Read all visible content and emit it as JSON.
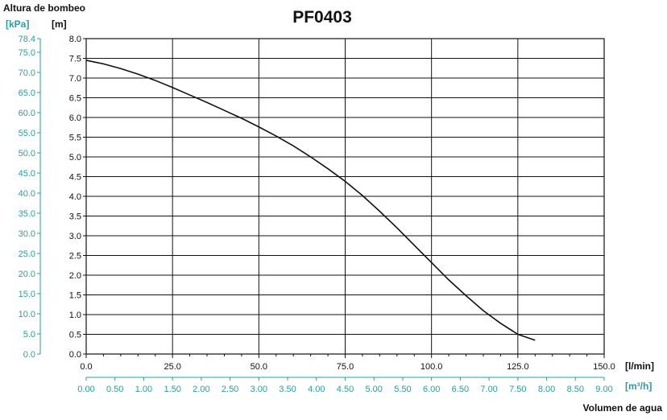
{
  "colors": {
    "axis_text": "#111111",
    "secondary_axis": "#2a9d9d",
    "grid": "#111111",
    "curve": "#111111"
  },
  "chart_data": {
    "type": "line",
    "title": "PF0403",
    "y_axis_title": "Altura de bombeo",
    "y_unit_m": "[m]",
    "y_unit_kpa": "[kPa]",
    "x_unit_lmin": "[l/min]",
    "x_unit_m3h": "[m³/h]",
    "x_axis_title": "Volumen de agua",
    "xlim": [
      0,
      150
    ],
    "ylim": [
      0,
      8
    ],
    "x_ticks": [
      "0.0",
      "25.0",
      "50.0",
      "75.0",
      "100.0",
      "125.0",
      "150.0"
    ],
    "y_ticks": [
      "0.0",
      "0.5",
      "1.0",
      "1.5",
      "2.0",
      "2.5",
      "3.0",
      "3.5",
      "4.0",
      "4.5",
      "5.0",
      "5.5",
      "6.0",
      "6.5",
      "7.0",
      "7.5",
      "8.0"
    ],
    "kpa_ticks": [
      "0.0",
      "5.0",
      "10.0",
      "15.0",
      "20.0",
      "25.0",
      "30.0",
      "35.0",
      "40.0",
      "45.0",
      "50.0",
      "55.0",
      "60.0",
      "65.0",
      "70.0",
      "75.0",
      "78.4"
    ],
    "kpa_values": [
      0,
      5,
      10,
      15,
      20,
      25,
      30,
      35,
      40,
      45,
      50,
      55,
      60,
      65,
      70,
      75,
      78.4
    ],
    "m3h_ticks": [
      "0.00",
      "0.50",
      "1.00",
      "1.50",
      "2.00",
      "2.50",
      "3.00",
      "3.50",
      "4.00",
      "4.50",
      "5.00",
      "5.50",
      "6.00",
      "6.50",
      "7.00",
      "7.50",
      "8.00",
      "8.50",
      "9.00"
    ],
    "m3h_values": [
      0,
      0.5,
      1.0,
      1.5,
      2.0,
      2.5,
      3.0,
      3.5,
      4.0,
      4.5,
      5.0,
      5.5,
      6.0,
      6.5,
      7.0,
      7.5,
      8.0,
      8.5,
      9.0
    ],
    "grid": true,
    "series": [
      {
        "x": [
          0,
          5,
          10,
          15,
          20,
          25,
          30,
          35,
          40,
          45,
          50,
          55,
          60,
          65,
          70,
          75,
          80,
          85,
          90,
          95,
          100,
          105,
          110,
          115,
          120,
          125,
          130
        ],
        "y": [
          7.45,
          7.36,
          7.24,
          7.1,
          6.94,
          6.76,
          6.57,
          6.38,
          6.18,
          5.98,
          5.76,
          5.53,
          5.28,
          5.0,
          4.7,
          4.38,
          4.02,
          3.62,
          3.2,
          2.76,
          2.32,
          1.88,
          1.48,
          1.1,
          0.78,
          0.5,
          0.35
        ]
      }
    ]
  }
}
